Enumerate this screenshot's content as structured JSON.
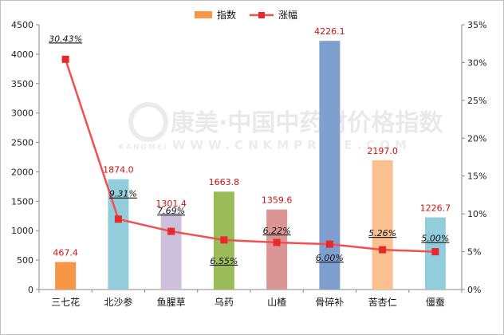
{
  "watermark": {
    "brand": "康美·中国中药材价格指数",
    "sub_left": "KANGMEI",
    "sub_right": "WWW.CNKMPRICE.COM"
  },
  "chart_data": {
    "type": "bar",
    "categories": [
      "三七花",
      "北沙参",
      "鱼腥草",
      "乌药",
      "山楂",
      "骨碎补",
      "苦杏仁",
      "僵蚕"
    ],
    "series": [
      {
        "name": "指数",
        "type": "bar",
        "axis": "left",
        "values": [
          467.4,
          1874.0,
          1301.4,
          1663.8,
          1359.6,
          4226.1,
          2197.0,
          1226.7
        ],
        "labels": [
          "467.4",
          "1874.0",
          "1301.4",
          "1663.8",
          "1359.6",
          "4226.1",
          "2197.0",
          "1226.7"
        ],
        "colors": [
          "#f79646",
          "#92cddc",
          "#ccc0da",
          "#9bbb59",
          "#d99694",
          "#7f9fcf",
          "#fac08f",
          "#92cddc"
        ]
      },
      {
        "name": "涨幅",
        "type": "line",
        "axis": "right",
        "color": "#f05050",
        "values": [
          30.43,
          9.31,
          7.69,
          6.55,
          6.22,
          6.0,
          5.26,
          5.0
        ],
        "labels": [
          "30.43%",
          "9.31%",
          "7.69%",
          "6.55%",
          "6.22%",
          "6.00%",
          "5.26%",
          "5.00%"
        ]
      }
    ],
    "y_left": {
      "min": 0,
      "max": 4500,
      "step": 500,
      "ticks": [
        "0",
        "500",
        "1000",
        "1500",
        "2000",
        "2500",
        "3000",
        "3500",
        "4000",
        "4500"
      ]
    },
    "y_right": {
      "min": 0,
      "max": 35,
      "step": 5,
      "ticks": [
        "0%",
        "5%",
        "10%",
        "15%",
        "20%",
        "25%",
        "30%",
        "35%"
      ]
    },
    "legend_position": "top-center",
    "grid": false
  }
}
